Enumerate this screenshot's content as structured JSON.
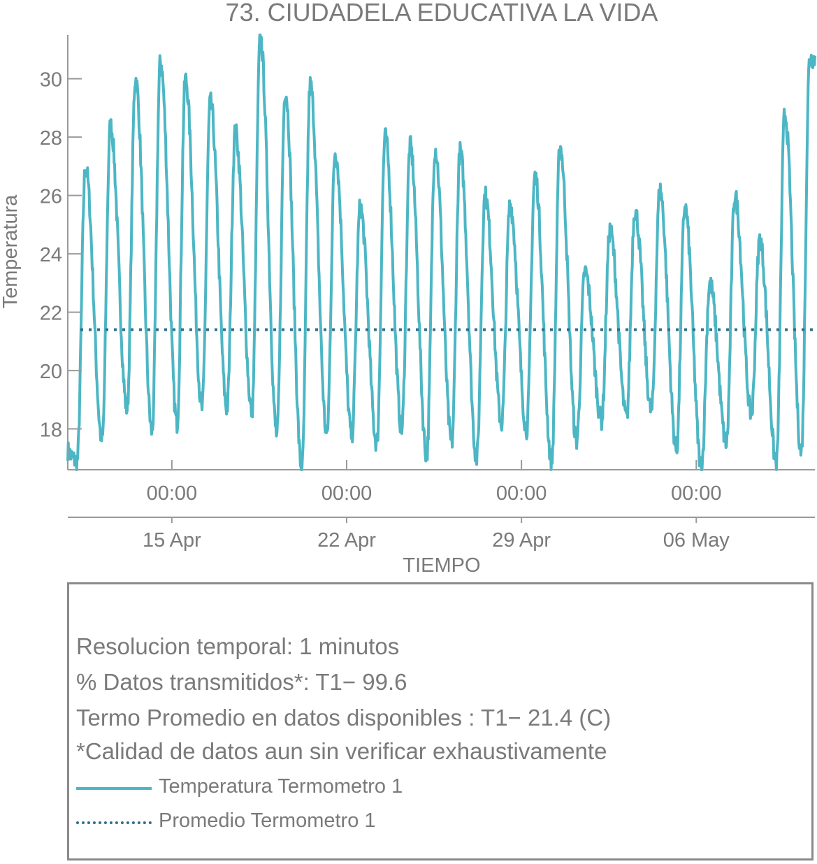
{
  "title": "73. CIUDADELA EDUCATIVA LA VIDA",
  "colors": {
    "series_line": "#4db6c4",
    "mean_line": "#2f6f8a",
    "axis": "#9a9a9a",
    "text": "#7a7a7a"
  },
  "info": {
    "line1": "Resolucion temporal: 1 minutos",
    "line2": "% Datos transmitidos*: T1− 99.6",
    "line3": "Termo Promedio en datos disponibles : T1− 21.4 (C)",
    "line4": "*Calidad de datos aun sin verificar exhaustivamente"
  },
  "legend": {
    "item1": "Temperatura Termometro 1",
    "item2": "Promedio Termometro 1"
  },
  "chart_data": {
    "type": "line",
    "title": "73. CIUDADELA EDUCATIVA LA VIDA",
    "xlabel": "TIEMPO",
    "ylabel": "Temperatura",
    "xlim": [
      "2024-04-10T20:00",
      "2024-05-10T18:00"
    ],
    "ylim": [
      16.6,
      31.5
    ],
    "yticks": [
      18,
      20,
      22,
      24,
      26,
      28,
      30
    ],
    "xticks_time": [
      "00:00",
      "00:00",
      "00:00",
      "00:00"
    ],
    "xticks_date": [
      "15 Apr",
      "22 Apr",
      "29 Apr",
      "06 May"
    ],
    "xtick_positions": [
      "2024-04-15T00:00",
      "2024-04-22T00:00",
      "2024-04-29T00:00",
      "2024-05-06T00:00"
    ],
    "grid": false,
    "legend_position": "bottom",
    "series": [
      {
        "name": "Temperatura Termometro 1",
        "style": "solid",
        "daily_extremes": {
          "dates": [
            "2024-04-10",
            "2024-04-11",
            "2024-04-12",
            "2024-04-13",
            "2024-04-14",
            "2024-04-15",
            "2024-04-16",
            "2024-04-17",
            "2024-04-18",
            "2024-04-19",
            "2024-04-20",
            "2024-04-21",
            "2024-04-22",
            "2024-04-23",
            "2024-04-24",
            "2024-04-25",
            "2024-04-26",
            "2024-04-27",
            "2024-04-28",
            "2024-04-29",
            "2024-04-30",
            "2024-05-01",
            "2024-05-02",
            "2024-05-03",
            "2024-05-04",
            "2024-05-05",
            "2024-05-06",
            "2024-05-07",
            "2024-05-08",
            "2024-05-09",
            "2024-05-10"
          ],
          "min": [
            17.5,
            16.9,
            17.6,
            18.7,
            17.9,
            18.2,
            18.7,
            18.7,
            18.6,
            17.8,
            16.6,
            17.8,
            17.8,
            17.5,
            18.0,
            17.1,
            17.5,
            17.0,
            18.2,
            18.0,
            16.9,
            17.6,
            18.3,
            18.4,
            18.6,
            17.3,
            16.7,
            17.5,
            18.5,
            16.8,
            17.2
          ],
          "max": [
            17.5,
            27.0,
            28.4,
            30.0,
            30.6,
            30.0,
            29.2,
            28.2,
            31.4,
            29.6,
            29.8,
            27.5,
            25.6,
            28.0,
            27.7,
            27.6,
            27.5,
            26.0,
            25.7,
            26.7,
            27.7,
            23.4,
            24.8,
            25.5,
            26.2,
            25.6,
            23.0,
            26.0,
            24.5,
            28.8,
            30.7
          ]
        }
      },
      {
        "name": "Promedio Termometro 1",
        "style": "dotted",
        "value": 21.4
      }
    ]
  }
}
